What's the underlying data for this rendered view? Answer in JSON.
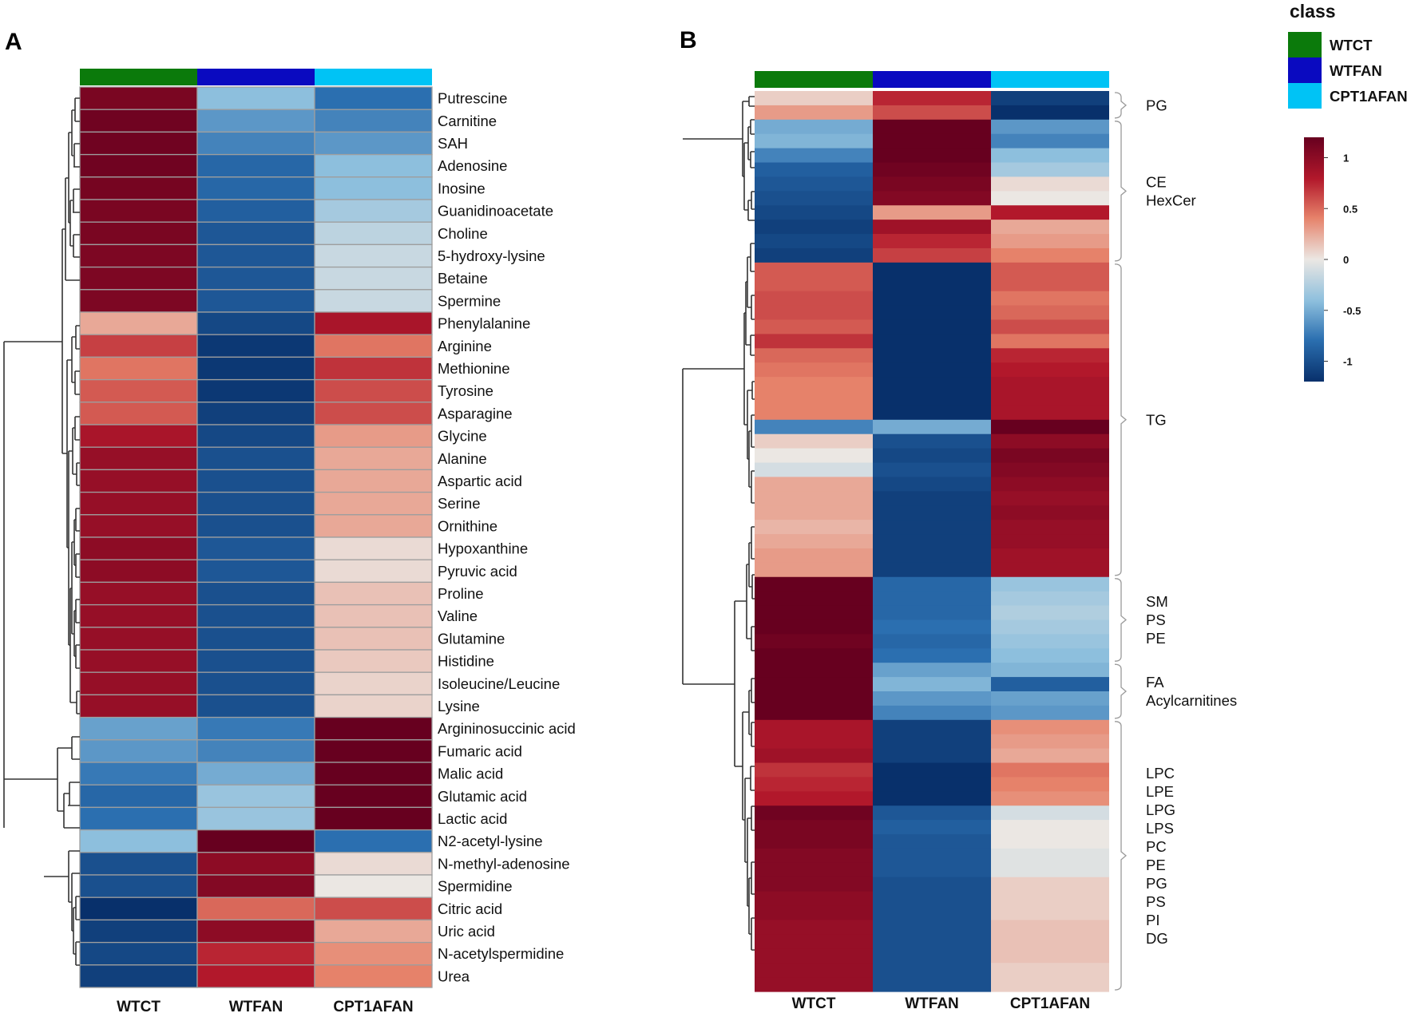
{
  "colors": {
    "WTCT": "#0b7a0b",
    "WTFAN": "#0a0ac0",
    "CPT1AFAN": "#00c3f5"
  },
  "chart_data": [
    {
      "type": "heatmap",
      "panel": "A",
      "columns": [
        "WTCT",
        "WTFAN",
        "CPT1AFAN"
      ],
      "rows": [
        {
          "label": "Putrescine",
          "values": [
            1.1,
            -0.4,
            -0.8
          ]
        },
        {
          "label": "Carnitine",
          "values": [
            1.15,
            -0.6,
            -0.7
          ]
        },
        {
          "label": "SAH",
          "values": [
            1.15,
            -0.7,
            -0.6
          ]
        },
        {
          "label": "Adenosine",
          "values": [
            1.15,
            -0.85,
            -0.4
          ]
        },
        {
          "label": "Inosine",
          "values": [
            1.12,
            -0.85,
            -0.4
          ]
        },
        {
          "label": "Guanidinoacetate",
          "values": [
            1.1,
            -0.9,
            -0.3
          ]
        },
        {
          "label": "Choline",
          "values": [
            1.1,
            -0.95,
            -0.2
          ]
        },
        {
          "label": "5-hydroxy-lysine",
          "values": [
            1.08,
            -0.95,
            -0.15
          ]
        },
        {
          "label": "Betaine",
          "values": [
            1.08,
            -0.95,
            -0.15
          ]
        },
        {
          "label": "Spermine",
          "values": [
            1.08,
            -0.95,
            -0.15
          ]
        },
        {
          "label": "Phenylalanine",
          "values": [
            0.25,
            -1.05,
            0.85
          ]
        },
        {
          "label": "Arginine",
          "values": [
            0.65,
            -1.15,
            0.45
          ]
        },
        {
          "label": "Methionine",
          "values": [
            0.45,
            -1.15,
            0.7
          ]
        },
        {
          "label": "Tyrosine",
          "values": [
            0.55,
            -1.15,
            0.6
          ]
        },
        {
          "label": "Asparagine",
          "values": [
            0.55,
            -1.1,
            0.6
          ]
        },
        {
          "label": "Glycine",
          "values": [
            0.85,
            -1.05,
            0.3
          ]
        },
        {
          "label": "Alanine",
          "values": [
            0.95,
            -1.0,
            0.25
          ]
        },
        {
          "label": "Aspartic acid",
          "values": [
            0.95,
            -1.0,
            0.25
          ]
        },
        {
          "label": "Serine",
          "values": [
            0.95,
            -1.0,
            0.25
          ]
        },
        {
          "label": "Ornithine",
          "values": [
            0.95,
            -1.0,
            0.25
          ]
        },
        {
          "label": "Hypoxanthine",
          "values": [
            1.0,
            -0.95,
            0.05
          ]
        },
        {
          "label": "Pyruvic acid",
          "values": [
            1.0,
            -0.95,
            0.05
          ]
        },
        {
          "label": "Proline",
          "values": [
            0.95,
            -1.0,
            0.15
          ]
        },
        {
          "label": "Valine",
          "values": [
            0.95,
            -1.0,
            0.15
          ]
        },
        {
          "label": "Glutamine",
          "values": [
            0.95,
            -1.0,
            0.15
          ]
        },
        {
          "label": "Histidine",
          "values": [
            0.95,
            -1.0,
            0.12
          ]
        },
        {
          "label": "Isoleucine/Leucine",
          "values": [
            0.95,
            -1.0,
            0.08
          ]
        },
        {
          "label": "Lysine",
          "values": [
            0.95,
            -1.0,
            0.08
          ]
        },
        {
          "label": "Argininosuccinic acid",
          "values": [
            -0.55,
            -0.75,
            1.2
          ]
        },
        {
          "label": "Fumaric acid",
          "values": [
            -0.6,
            -0.7,
            1.2
          ]
        },
        {
          "label": "Malic acid",
          "values": [
            -0.75,
            -0.5,
            1.2
          ]
        },
        {
          "label": "Glutamic acid",
          "values": [
            -0.85,
            -0.35,
            1.2
          ]
        },
        {
          "label": "Lactic acid",
          "values": [
            -0.8,
            -0.35,
            1.2
          ]
        },
        {
          "label": "N2-acetyl-lysine",
          "values": [
            -0.4,
            1.2,
            -0.8
          ]
        },
        {
          "label": "N-methyl-adenosine",
          "values": [
            -1.0,
            1.0,
            0.05
          ]
        },
        {
          "label": "Spermidine",
          "values": [
            -1.0,
            1.05,
            0.0
          ]
        },
        {
          "label": "Citric acid",
          "values": [
            -1.2,
            0.5,
            0.6
          ]
        },
        {
          "label": "Uric acid",
          "values": [
            -1.1,
            1.0,
            0.25
          ]
        },
        {
          "label": "N-acetylspermidine",
          "values": [
            -1.05,
            0.75,
            0.35
          ]
        },
        {
          "label": "Urea",
          "values": [
            -1.1,
            0.8,
            0.4
          ]
        }
      ]
    },
    {
      "type": "heatmap",
      "panel": "B",
      "columns": [
        "WTCT",
        "WTFAN",
        "CPT1AFAN"
      ],
      "rows": [
        [
          0.1,
          0.75,
          -1.1
        ],
        [
          0.3,
          0.6,
          -1.2
        ],
        [
          -0.5,
          1.2,
          -0.6
        ],
        [
          -0.45,
          1.2,
          -0.7
        ],
        [
          -0.7,
          1.2,
          -0.4
        ],
        [
          -0.9,
          1.15,
          -0.3
        ],
        [
          -0.95,
          1.1,
          0.05
        ],
        [
          -1.0,
          1.05,
          0.0
        ],
        [
          -1.05,
          0.3,
          0.8
        ],
        [
          -1.1,
          0.9,
          0.25
        ],
        [
          -1.05,
          0.75,
          0.3
        ],
        [
          -1.1,
          0.65,
          0.4
        ],
        [
          0.55,
          -1.2,
          0.55
        ],
        [
          0.55,
          -1.2,
          0.55
        ],
        [
          0.6,
          -1.2,
          0.45
        ],
        [
          0.6,
          -1.2,
          0.5
        ],
        [
          0.55,
          -1.2,
          0.6
        ],
        [
          0.7,
          -1.2,
          0.45
        ],
        [
          0.5,
          -1.2,
          0.75
        ],
        [
          0.45,
          -1.2,
          0.8
        ],
        [
          0.4,
          -1.2,
          0.85
        ],
        [
          0.4,
          -1.2,
          0.85
        ],
        [
          0.4,
          -1.2,
          0.85
        ],
        [
          -0.7,
          -0.5,
          1.25
        ],
        [
          0.1,
          -1.0,
          1.0
        ],
        [
          0.0,
          -1.05,
          1.1
        ],
        [
          -0.1,
          -1.0,
          1.05
        ],
        [
          0.25,
          -1.05,
          1.0
        ],
        [
          0.25,
          -1.1,
          0.95
        ],
        [
          0.25,
          -1.1,
          1.0
        ],
        [
          0.2,
          -1.1,
          0.95
        ],
        [
          0.25,
          -1.1,
          0.95
        ],
        [
          0.3,
          -1.1,
          0.9
        ],
        [
          0.3,
          -1.1,
          0.9
        ],
        [
          1.2,
          -0.85,
          -0.35
        ],
        [
          1.2,
          -0.85,
          -0.3
        ],
        [
          1.2,
          -0.85,
          -0.25
        ],
        [
          1.2,
          -0.8,
          -0.3
        ],
        [
          1.15,
          -0.85,
          -0.35
        ],
        [
          1.2,
          -0.8,
          -0.4
        ],
        [
          1.25,
          -0.55,
          -0.45
        ],
        [
          1.25,
          -0.45,
          -0.9
        ],
        [
          1.25,
          -0.6,
          -0.55
        ],
        [
          1.25,
          -0.7,
          -0.6
        ],
        [
          0.85,
          -1.1,
          0.35
        ],
        [
          0.85,
          -1.1,
          0.3
        ],
        [
          0.9,
          -1.1,
          0.25
        ],
        [
          0.7,
          -1.2,
          0.45
        ],
        [
          0.75,
          -1.2,
          0.4
        ],
        [
          0.8,
          -1.2,
          0.35
        ],
        [
          1.15,
          -0.95,
          -0.1
        ],
        [
          1.1,
          -0.9,
          0.0
        ],
        [
          1.1,
          -0.95,
          0.0
        ],
        [
          1.05,
          -0.95,
          -0.05
        ],
        [
          1.05,
          -0.95,
          -0.05
        ],
        [
          1.05,
          -1.0,
          0.1
        ],
        [
          1.0,
          -1.0,
          0.1
        ],
        [
          1.0,
          -1.0,
          0.1
        ],
        [
          0.95,
          -1.0,
          0.15
        ],
        [
          0.95,
          -1.0,
          0.15
        ],
        [
          0.95,
          -1.0,
          0.15
        ],
        [
          0.95,
          -1.0,
          0.1
        ],
        [
          0.95,
          -1.0,
          0.1
        ]
      ],
      "groups": [
        {
          "labels": [
            "PG"
          ]
        },
        {
          "labels": [
            "CE",
            "HexCer"
          ]
        },
        {
          "labels": [
            "TG"
          ]
        },
        {
          "labels": [
            "SM",
            "PS",
            "PE"
          ]
        },
        {
          "labels": [
            "FA",
            "Acylcarnitines"
          ]
        },
        {
          "labels": [
            "LPC",
            "LPE",
            "LPG",
            "LPS",
            "PC",
            "PE",
            "PG",
            "PS",
            "PI",
            "DG"
          ]
        }
      ]
    }
  ],
  "legend": {
    "title": "class",
    "items": [
      "WTCT",
      "WTFAN",
      "CPT1AFAN"
    ],
    "scale_ticks": [
      "1",
      "0.5",
      "0",
      "-0.5",
      "-1"
    ],
    "scale_range": [
      -1.2,
      1.2
    ]
  },
  "panels": {
    "a_letter": "A",
    "b_letter": "B"
  }
}
